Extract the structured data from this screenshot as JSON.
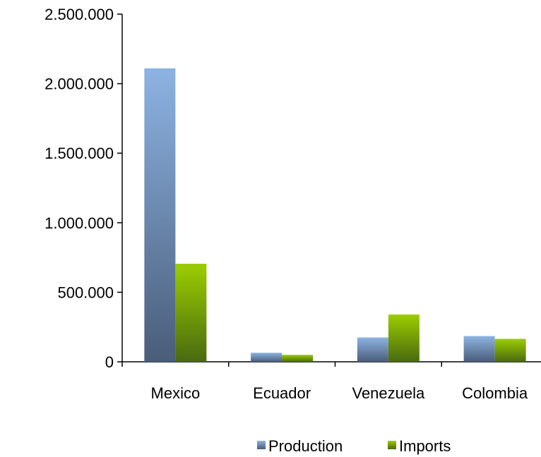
{
  "chart_data": {
    "type": "bar",
    "categories": [
      "Mexico",
      "Ecuador",
      "Venezuela",
      "Colombia"
    ],
    "series": [
      {
        "name": "Production",
        "values": [
          2110000,
          65000,
          175000,
          185000
        ],
        "color": "#8db3e2",
        "color_dark": "#4a5d79"
      },
      {
        "name": "Imports",
        "values": [
          705000,
          50000,
          340000,
          165000
        ],
        "color": "#9bcd00",
        "color_dark": "#4a6a10"
      }
    ],
    "yticks": [
      "0",
      "500.000",
      "1.000.000",
      "1.500.000",
      "2.000.000",
      "2.500.000"
    ],
    "ylim": [
      0,
      2500000
    ],
    "grid": false,
    "legend_position": "bottom"
  }
}
